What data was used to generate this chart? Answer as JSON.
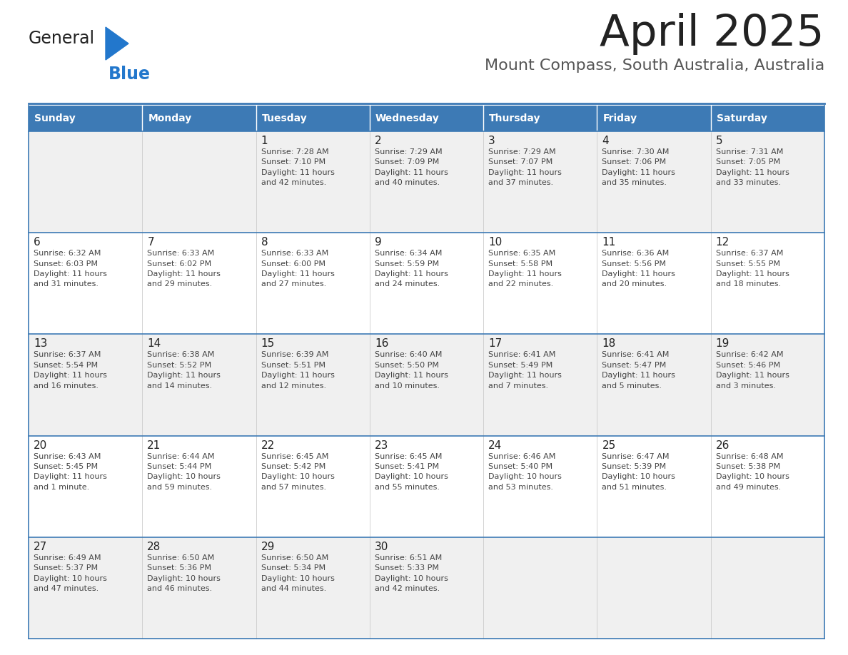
{
  "title": "April 2025",
  "subtitle": "Mount Compass, South Australia, Australia",
  "days_of_week": [
    "Sunday",
    "Monday",
    "Tuesday",
    "Wednesday",
    "Thursday",
    "Friday",
    "Saturday"
  ],
  "header_bg": "#3d7ab5",
  "header_text": "#ffffff",
  "row_bg_odd": "#f0f0f0",
  "row_bg_even": "#ffffff",
  "cell_text_color": "#444444",
  "day_num_color": "#222222",
  "title_color": "#222222",
  "subtitle_color": "#555555",
  "divider_color": "#3d7ab5",
  "logo_color_general": "#222222",
  "logo_color_blue": "#2277cc",
  "calendar_data": [
    [
      {
        "day": "",
        "info": ""
      },
      {
        "day": "",
        "info": ""
      },
      {
        "day": "1",
        "info": "Sunrise: 7:28 AM\nSunset: 7:10 PM\nDaylight: 11 hours\nand 42 minutes."
      },
      {
        "day": "2",
        "info": "Sunrise: 7:29 AM\nSunset: 7:09 PM\nDaylight: 11 hours\nand 40 minutes."
      },
      {
        "day": "3",
        "info": "Sunrise: 7:29 AM\nSunset: 7:07 PM\nDaylight: 11 hours\nand 37 minutes."
      },
      {
        "day": "4",
        "info": "Sunrise: 7:30 AM\nSunset: 7:06 PM\nDaylight: 11 hours\nand 35 minutes."
      },
      {
        "day": "5",
        "info": "Sunrise: 7:31 AM\nSunset: 7:05 PM\nDaylight: 11 hours\nand 33 minutes."
      }
    ],
    [
      {
        "day": "6",
        "info": "Sunrise: 6:32 AM\nSunset: 6:03 PM\nDaylight: 11 hours\nand 31 minutes."
      },
      {
        "day": "7",
        "info": "Sunrise: 6:33 AM\nSunset: 6:02 PM\nDaylight: 11 hours\nand 29 minutes."
      },
      {
        "day": "8",
        "info": "Sunrise: 6:33 AM\nSunset: 6:00 PM\nDaylight: 11 hours\nand 27 minutes."
      },
      {
        "day": "9",
        "info": "Sunrise: 6:34 AM\nSunset: 5:59 PM\nDaylight: 11 hours\nand 24 minutes."
      },
      {
        "day": "10",
        "info": "Sunrise: 6:35 AM\nSunset: 5:58 PM\nDaylight: 11 hours\nand 22 minutes."
      },
      {
        "day": "11",
        "info": "Sunrise: 6:36 AM\nSunset: 5:56 PM\nDaylight: 11 hours\nand 20 minutes."
      },
      {
        "day": "12",
        "info": "Sunrise: 6:37 AM\nSunset: 5:55 PM\nDaylight: 11 hours\nand 18 minutes."
      }
    ],
    [
      {
        "day": "13",
        "info": "Sunrise: 6:37 AM\nSunset: 5:54 PM\nDaylight: 11 hours\nand 16 minutes."
      },
      {
        "day": "14",
        "info": "Sunrise: 6:38 AM\nSunset: 5:52 PM\nDaylight: 11 hours\nand 14 minutes."
      },
      {
        "day": "15",
        "info": "Sunrise: 6:39 AM\nSunset: 5:51 PM\nDaylight: 11 hours\nand 12 minutes."
      },
      {
        "day": "16",
        "info": "Sunrise: 6:40 AM\nSunset: 5:50 PM\nDaylight: 11 hours\nand 10 minutes."
      },
      {
        "day": "17",
        "info": "Sunrise: 6:41 AM\nSunset: 5:49 PM\nDaylight: 11 hours\nand 7 minutes."
      },
      {
        "day": "18",
        "info": "Sunrise: 6:41 AM\nSunset: 5:47 PM\nDaylight: 11 hours\nand 5 minutes."
      },
      {
        "day": "19",
        "info": "Sunrise: 6:42 AM\nSunset: 5:46 PM\nDaylight: 11 hours\nand 3 minutes."
      }
    ],
    [
      {
        "day": "20",
        "info": "Sunrise: 6:43 AM\nSunset: 5:45 PM\nDaylight: 11 hours\nand 1 minute."
      },
      {
        "day": "21",
        "info": "Sunrise: 6:44 AM\nSunset: 5:44 PM\nDaylight: 10 hours\nand 59 minutes."
      },
      {
        "day": "22",
        "info": "Sunrise: 6:45 AM\nSunset: 5:42 PM\nDaylight: 10 hours\nand 57 minutes."
      },
      {
        "day": "23",
        "info": "Sunrise: 6:45 AM\nSunset: 5:41 PM\nDaylight: 10 hours\nand 55 minutes."
      },
      {
        "day": "24",
        "info": "Sunrise: 6:46 AM\nSunset: 5:40 PM\nDaylight: 10 hours\nand 53 minutes."
      },
      {
        "day": "25",
        "info": "Sunrise: 6:47 AM\nSunset: 5:39 PM\nDaylight: 10 hours\nand 51 minutes."
      },
      {
        "day": "26",
        "info": "Sunrise: 6:48 AM\nSunset: 5:38 PM\nDaylight: 10 hours\nand 49 minutes."
      }
    ],
    [
      {
        "day": "27",
        "info": "Sunrise: 6:49 AM\nSunset: 5:37 PM\nDaylight: 10 hours\nand 47 minutes."
      },
      {
        "day": "28",
        "info": "Sunrise: 6:50 AM\nSunset: 5:36 PM\nDaylight: 10 hours\nand 46 minutes."
      },
      {
        "day": "29",
        "info": "Sunrise: 6:50 AM\nSunset: 5:34 PM\nDaylight: 10 hours\nand 44 minutes."
      },
      {
        "day": "30",
        "info": "Sunrise: 6:51 AM\nSunset: 5:33 PM\nDaylight: 10 hours\nand 42 minutes."
      },
      {
        "day": "",
        "info": ""
      },
      {
        "day": "",
        "info": ""
      },
      {
        "day": "",
        "info": ""
      }
    ]
  ]
}
